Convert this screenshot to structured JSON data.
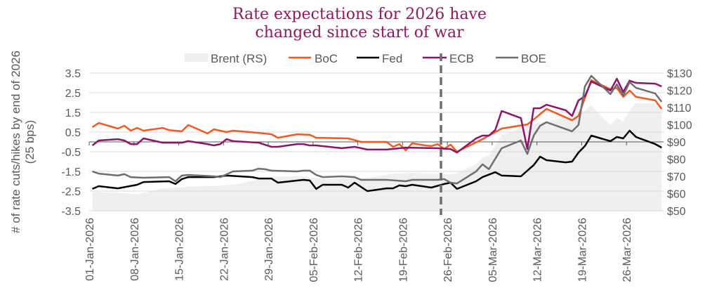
{
  "chart_data": {
    "type": "line",
    "title_lines": [
      "Rate expectations for 2026 have",
      "changed since start of war"
    ],
    "ylabel_lines": [
      "# of rate cuts/hikes by end of 2026",
      "(25 bps)"
    ],
    "ylim": [
      -3.5,
      3.5
    ],
    "y_ticks": [
      "3.5",
      "2.5",
      "1.5",
      "0.5",
      "-0.5",
      "-1.5",
      "-2.5",
      "-3.5"
    ],
    "y2lim": [
      50,
      130
    ],
    "y2_ticks": [
      "$130",
      "$120",
      "$110",
      "$100",
      "$90",
      "$80",
      "$70",
      "$60",
      "$50"
    ],
    "x_ticks": [
      {
        "date": "2026-01-01",
        "label": "01-Jan-2026"
      },
      {
        "date": "2026-01-08",
        "label": "08-Jan-2026"
      },
      {
        "date": "2026-01-15",
        "label": "15-Jan-2026"
      },
      {
        "date": "2026-01-22",
        "label": "22-Jan-2026"
      },
      {
        "date": "2026-01-29",
        "label": "29-Jan-2026"
      },
      {
        "date": "2026-02-05",
        "label": "05-Feb-2026"
      },
      {
        "date": "2026-02-12",
        "label": "12-Feb-2026"
      },
      {
        "date": "2026-02-19",
        "label": "19-Feb-2026"
      },
      {
        "date": "2026-02-26",
        "label": "26-Feb-2026"
      },
      {
        "date": "2026-03-05",
        "label": "05-Mar-2026"
      },
      {
        "date": "2026-03-12",
        "label": "12-Mar-2026"
      },
      {
        "date": "2026-03-19",
        "label": "19-Mar-2026"
      },
      {
        "date": "2026-03-26",
        "label": "26-Mar-2026"
      }
    ],
    "xlim": [
      "2026-01-01",
      "2026-03-31"
    ],
    "grid": "horizontal",
    "legend_position": "top",
    "marker_line": {
      "date": "2026-02-25",
      "style": "dashed",
      "color": "#6d6e71"
    },
    "area_series": {
      "name": "Brent (RS)",
      "axis": "right",
      "color": "#eeefef",
      "points": [
        [
          "2026-01-01",
          61
        ],
        [
          "2026-01-05",
          60.5
        ],
        [
          "2026-01-08",
          59.5
        ],
        [
          "2026-01-12",
          63
        ],
        [
          "2026-01-16",
          64
        ],
        [
          "2026-01-20",
          64.5
        ],
        [
          "2026-01-23",
          65
        ],
        [
          "2026-01-27",
          68
        ],
        [
          "2026-01-30",
          70
        ],
        [
          "2026-02-03",
          70
        ],
        [
          "2026-02-06",
          68.5
        ],
        [
          "2026-02-10",
          69
        ],
        [
          "2026-02-13",
          69
        ],
        [
          "2026-02-17",
          71.5
        ],
        [
          "2026-02-20",
          72
        ],
        [
          "2026-02-24",
          71.5
        ],
        [
          "2026-02-26",
          71
        ],
        [
          "2026-02-27",
          72
        ],
        [
          "2026-03-02",
          77
        ],
        [
          "2026-03-03",
          81
        ],
        [
          "2026-03-04",
          82
        ],
        [
          "2026-03-06",
          93.7
        ],
        [
          "2026-03-09",
          98
        ],
        [
          "2026-03-10",
          99.8
        ],
        [
          "2026-03-13",
          102
        ],
        [
          "2026-03-17",
          105
        ],
        [
          "2026-03-19",
          108
        ],
        [
          "2026-03-20",
          111.6
        ],
        [
          "2026-03-21",
          107
        ],
        [
          "2026-03-23",
          99.8
        ],
        [
          "2026-03-24",
          104
        ],
        [
          "2026-03-25",
          102
        ],
        [
          "2026-03-26",
          108
        ],
        [
          "2026-03-27",
          112.5
        ],
        [
          "2026-03-30",
          112.5
        ],
        [
          "2026-03-31",
          111
        ]
      ]
    },
    "series": [
      {
        "name": "BoC",
        "color": "#f15a22",
        "points": [
          [
            "2026-01-01",
            0.75
          ],
          [
            "2026-01-02",
            0.96
          ],
          [
            "2026-01-05",
            0.68
          ],
          [
            "2026-01-06",
            0.82
          ],
          [
            "2026-01-07",
            0.57
          ],
          [
            "2026-01-08",
            0.71
          ],
          [
            "2026-01-09",
            0.57
          ],
          [
            "2026-01-12",
            0.71
          ],
          [
            "2026-01-13",
            0.6
          ],
          [
            "2026-01-15",
            0.54
          ],
          [
            "2026-01-16",
            0.86
          ],
          [
            "2026-01-19",
            0.43
          ],
          [
            "2026-01-20",
            0.64
          ],
          [
            "2026-01-22",
            0.5
          ],
          [
            "2026-01-23",
            0.57
          ],
          [
            "2026-01-27",
            0.46
          ],
          [
            "2026-01-29",
            0.39
          ],
          [
            "2026-01-30",
            0.21
          ],
          [
            "2026-02-02",
            0.39
          ],
          [
            "2026-02-04",
            0.36
          ],
          [
            "2026-02-05",
            0.21
          ],
          [
            "2026-02-10",
            0.18
          ],
          [
            "2026-02-12",
            0.0
          ],
          [
            "2026-02-16",
            0.0
          ],
          [
            "2026-02-17",
            -0.25
          ],
          [
            "2026-02-18",
            -0.11
          ],
          [
            "2026-02-19",
            -0.43
          ],
          [
            "2026-02-20",
            -0.07
          ],
          [
            "2026-02-22",
            -0.18
          ],
          [
            "2026-02-23",
            -0.21
          ],
          [
            "2026-02-24",
            -0.11
          ],
          [
            "2026-02-25",
            -0.36
          ],
          [
            "2026-02-26",
            -0.14
          ],
          [
            "2026-02-27",
            -0.5
          ],
          [
            "2026-03-03",
            0.14
          ],
          [
            "2026-03-04",
            0.32
          ],
          [
            "2026-03-06",
            0.68
          ],
          [
            "2026-03-10",
            0.89
          ],
          [
            "2026-03-11",
            1.14
          ],
          [
            "2026-03-13",
            1.68
          ],
          [
            "2026-03-17",
            1.1
          ],
          [
            "2026-03-18",
            1.32
          ],
          [
            "2026-03-20",
            3.14
          ],
          [
            "2026-03-23",
            2.68
          ],
          [
            "2026-03-24",
            2.75
          ],
          [
            "2026-03-25",
            2.29
          ],
          [
            "2026-03-26",
            2.61
          ],
          [
            "2026-03-27",
            2.29
          ],
          [
            "2026-03-30",
            2.11
          ],
          [
            "2026-03-31",
            1.68
          ]
        ]
      },
      {
        "name": "Fed",
        "color": "#000000",
        "points": [
          [
            "2026-01-01",
            -2.39
          ],
          [
            "2026-01-02",
            -2.25
          ],
          [
            "2026-01-05",
            -2.36
          ],
          [
            "2026-01-08",
            -2.18
          ],
          [
            "2026-01-09",
            -2.04
          ],
          [
            "2026-01-13",
            -2.0
          ],
          [
            "2026-01-14",
            -2.14
          ],
          [
            "2026-01-15",
            -1.89
          ],
          [
            "2026-01-16",
            -1.79
          ],
          [
            "2026-01-20",
            -1.79
          ],
          [
            "2026-01-22",
            -1.71
          ],
          [
            "2026-01-26",
            -1.79
          ],
          [
            "2026-01-27",
            -1.86
          ],
          [
            "2026-01-29",
            -1.86
          ],
          [
            "2026-01-30",
            -2.07
          ],
          [
            "2026-02-03",
            -1.93
          ],
          [
            "2026-02-04",
            -1.96
          ],
          [
            "2026-02-05",
            -2.39
          ],
          [
            "2026-02-06",
            -2.18
          ],
          [
            "2026-02-09",
            -2.18
          ],
          [
            "2026-02-10",
            -2.32
          ],
          [
            "2026-02-11",
            -2.07
          ],
          [
            "2026-02-13",
            -2.5
          ],
          [
            "2026-02-16",
            -2.36
          ],
          [
            "2026-02-17",
            -2.36
          ],
          [
            "2026-02-18",
            -2.21
          ],
          [
            "2026-02-19",
            -2.25
          ],
          [
            "2026-02-20",
            -2.18
          ],
          [
            "2026-02-23",
            -2.32
          ],
          [
            "2026-02-25",
            -2.14
          ],
          [
            "2026-02-26",
            -2.07
          ],
          [
            "2026-02-27",
            -2.39
          ],
          [
            "2026-03-02",
            -2.0
          ],
          [
            "2026-03-03",
            -1.79
          ],
          [
            "2026-03-05",
            -1.54
          ],
          [
            "2026-03-06",
            -1.71
          ],
          [
            "2026-03-09",
            -1.75
          ],
          [
            "2026-03-10",
            -1.46
          ],
          [
            "2026-03-11",
            -1.18
          ],
          [
            "2026-03-12",
            -0.75
          ],
          [
            "2026-03-13",
            -0.93
          ],
          [
            "2026-03-16",
            -1.04
          ],
          [
            "2026-03-17",
            -1.0
          ],
          [
            "2026-03-18",
            -0.54
          ],
          [
            "2026-03-19",
            -0.21
          ],
          [
            "2026-03-20",
            0.32
          ],
          [
            "2026-03-23",
            0.04
          ],
          [
            "2026-03-24",
            0.25
          ],
          [
            "2026-03-25",
            0.18
          ],
          [
            "2026-03-26",
            0.57
          ],
          [
            "2026-03-27",
            0.25
          ],
          [
            "2026-03-30",
            -0.11
          ],
          [
            "2026-03-31",
            -0.29
          ]
        ]
      },
      {
        "name": "ECB",
        "color": "#8b1566",
        "points": [
          [
            "2026-01-01",
            -0.18
          ],
          [
            "2026-01-02",
            0.07
          ],
          [
            "2026-01-05",
            0.14
          ],
          [
            "2026-01-06",
            0.07
          ],
          [
            "2026-01-07",
            -0.11
          ],
          [
            "2026-01-08",
            -0.11
          ],
          [
            "2026-01-09",
            0.18
          ],
          [
            "2026-01-12",
            -0.04
          ],
          [
            "2026-01-15",
            -0.04
          ],
          [
            "2026-01-16",
            0.04
          ],
          [
            "2026-01-19",
            -0.11
          ],
          [
            "2026-01-20",
            -0.18
          ],
          [
            "2026-01-21",
            -0.11
          ],
          [
            "2026-01-22",
            0.14
          ],
          [
            "2026-01-23",
            0.04
          ],
          [
            "2026-01-27",
            -0.04
          ],
          [
            "2026-01-29",
            -0.25
          ],
          [
            "2026-01-30",
            -0.25
          ],
          [
            "2026-02-02",
            -0.11
          ],
          [
            "2026-02-03",
            -0.11
          ],
          [
            "2026-02-04",
            -0.18
          ],
          [
            "2026-02-05",
            -0.18
          ],
          [
            "2026-02-09",
            -0.32
          ],
          [
            "2026-02-11",
            -0.25
          ],
          [
            "2026-02-13",
            -0.39
          ],
          [
            "2026-02-16",
            -0.39
          ],
          [
            "2026-02-19",
            -0.29
          ],
          [
            "2026-02-24",
            -0.32
          ],
          [
            "2026-02-26",
            -0.36
          ],
          [
            "2026-02-27",
            -0.54
          ],
          [
            "2026-03-02",
            0.18
          ],
          [
            "2026-03-03",
            0.32
          ],
          [
            "2026-03-04",
            0.32
          ],
          [
            "2026-03-05",
            0.61
          ],
          [
            "2026-03-06",
            1.57
          ],
          [
            "2026-03-09",
            1.21
          ],
          [
            "2026-03-10",
            -0.36
          ],
          [
            "2026-03-11",
            1.71
          ],
          [
            "2026-03-12",
            1.71
          ],
          [
            "2026-03-13",
            1.89
          ],
          [
            "2026-03-16",
            1.61
          ],
          [
            "2026-03-17",
            1.32
          ],
          [
            "2026-03-18",
            2.11
          ],
          [
            "2026-03-19",
            2.32
          ],
          [
            "2026-03-20",
            3.07
          ],
          [
            "2026-03-23",
            2.61
          ],
          [
            "2026-03-24",
            3.21
          ],
          [
            "2026-03-25",
            2.54
          ],
          [
            "2026-03-26",
            3.11
          ],
          [
            "2026-03-27",
            3.0
          ],
          [
            "2026-03-30",
            2.96
          ],
          [
            "2026-03-31",
            2.82
          ]
        ]
      },
      {
        "name": "BOE",
        "color": "#6d6e71",
        "points": [
          [
            "2026-01-01",
            -1.5
          ],
          [
            "2026-01-02",
            -1.61
          ],
          [
            "2026-01-05",
            -1.71
          ],
          [
            "2026-01-06",
            -1.64
          ],
          [
            "2026-01-07",
            -1.79
          ],
          [
            "2026-01-09",
            -1.82
          ],
          [
            "2026-01-13",
            -1.79
          ],
          [
            "2026-01-14",
            -2.0
          ],
          [
            "2026-01-15",
            -1.71
          ],
          [
            "2026-01-16",
            -1.68
          ],
          [
            "2026-01-20",
            -1.75
          ],
          [
            "2026-01-21",
            -1.79
          ],
          [
            "2026-01-23",
            -1.5
          ],
          [
            "2026-01-26",
            -1.46
          ],
          [
            "2026-01-27",
            -1.36
          ],
          [
            "2026-01-28",
            -1.39
          ],
          [
            "2026-01-29",
            -1.46
          ],
          [
            "2026-02-02",
            -1.5
          ],
          [
            "2026-02-03",
            -1.46
          ],
          [
            "2026-02-04",
            -1.46
          ],
          [
            "2026-02-05",
            -1.68
          ],
          [
            "2026-02-06",
            -1.79
          ],
          [
            "2026-02-09",
            -1.75
          ],
          [
            "2026-02-11",
            -1.79
          ],
          [
            "2026-02-12",
            -1.93
          ],
          [
            "2026-02-16",
            -1.93
          ],
          [
            "2026-02-19",
            -2.0
          ],
          [
            "2026-02-20",
            -1.93
          ],
          [
            "2026-02-24",
            -1.93
          ],
          [
            "2026-02-25",
            -1.89
          ],
          [
            "2026-02-26",
            -2.07
          ],
          [
            "2026-02-27",
            -2.11
          ],
          [
            "2026-03-02",
            -1.5
          ],
          [
            "2026-03-03",
            -1.14
          ],
          [
            "2026-03-04",
            -1.39
          ],
          [
            "2026-03-06",
            -0.32
          ],
          [
            "2026-03-09",
            0.07
          ],
          [
            "2026-03-10",
            -0.61
          ],
          [
            "2026-03-11",
            0.32
          ],
          [
            "2026-03-12",
            0.82
          ],
          [
            "2026-03-13",
            1.0
          ],
          [
            "2026-03-17",
            0.54
          ],
          [
            "2026-03-18",
            0.86
          ],
          [
            "2026-03-19",
            2.82
          ],
          [
            "2026-03-20",
            3.36
          ],
          [
            "2026-03-23",
            2.43
          ],
          [
            "2026-03-24",
            2.93
          ],
          [
            "2026-03-25",
            2.36
          ],
          [
            "2026-03-26",
            3.04
          ],
          [
            "2026-03-27",
            2.75
          ],
          [
            "2026-03-30",
            2.46
          ],
          [
            "2026-03-31",
            2.04
          ]
        ]
      }
    ]
  }
}
